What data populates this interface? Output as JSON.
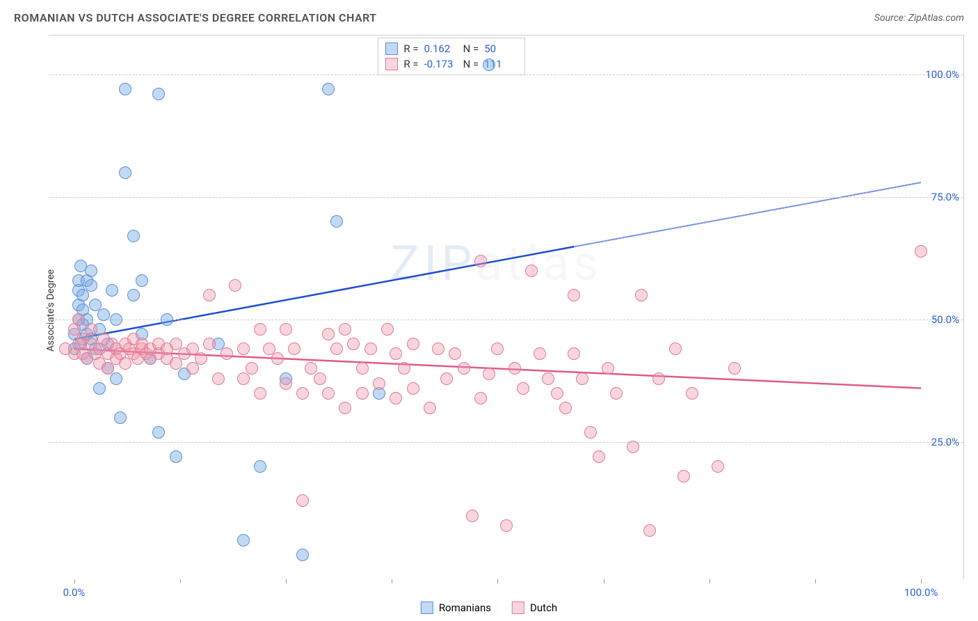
{
  "title": "ROMANIAN VS DUTCH ASSOCIATE'S DEGREE CORRELATION CHART",
  "source": "Source: ZipAtlas.com",
  "ylabel": "Associate's Degree",
  "watermark": {
    "zip": "ZIP",
    "atlas": "atlas",
    "color_zip": "#6b9bd1",
    "color_atlas": "#888888"
  },
  "colors": {
    "title": "#505050",
    "source": "#606060",
    "axis_label": "#2b5fd9",
    "ytick": "#2b5fd9",
    "grid": "#cccccc",
    "series1_fill": "rgba(120,170,230,0.45)",
    "series1_stroke": "#5b8fd6",
    "series1_line": "#1f4fd1",
    "series2_fill": "rgba(240,150,170,0.40)",
    "series2_stroke": "#e07a94",
    "series2_line": "#e05a8a"
  },
  "axes": {
    "xlim": [
      -3,
      105
    ],
    "ylim": [
      -3,
      108
    ],
    "xticks": [
      0,
      12.5,
      25,
      37.5,
      50,
      62.5,
      75,
      87.5,
      100
    ],
    "xtick_labels": {
      "0": "0.0%",
      "100": "100.0%"
    },
    "yticks": [
      25,
      50,
      75,
      100
    ],
    "ytick_labels": {
      "25": "25.0%",
      "50": "50.0%",
      "75": "75.0%",
      "100": "100.0%"
    }
  },
  "stats_box": {
    "rows": [
      {
        "swatch": 0,
        "r_label": "R =",
        "r_val": "0.162",
        "n_label": "N =",
        "n_val": "50"
      },
      {
        "swatch": 1,
        "r_label": "R =",
        "r_val": "-0.173",
        "n_label": "N =",
        "n_val": "111"
      }
    ]
  },
  "legend": {
    "items": [
      {
        "swatch": 0,
        "label": "Romanians"
      },
      {
        "swatch": 1,
        "label": "Dutch"
      }
    ]
  },
  "series": [
    {
      "name": "Romanians",
      "point_radius": 9,
      "trend": {
        "y_at_x0": 46,
        "y_at_x100": 78,
        "solid_until_x": 59
      },
      "points": [
        [
          0,
          44
        ],
        [
          0,
          47
        ],
        [
          0.5,
          50
        ],
        [
          0.5,
          53
        ],
        [
          0.5,
          56
        ],
        [
          0.5,
          58
        ],
        [
          0.8,
          61
        ],
        [
          0.8,
          45
        ],
        [
          1,
          52
        ],
        [
          1,
          49
        ],
        [
          1,
          55
        ],
        [
          1.5,
          58
        ],
        [
          1.5,
          42
        ],
        [
          1.5,
          47
        ],
        [
          1.5,
          50
        ],
        [
          2,
          57
        ],
        [
          2,
          60
        ],
        [
          2,
          46
        ],
        [
          2.5,
          44
        ],
        [
          2.5,
          53
        ],
        [
          3,
          48
        ],
        [
          3,
          36
        ],
        [
          3.5,
          51
        ],
        [
          4,
          45
        ],
        [
          4,
          40
        ],
        [
          4.5,
          56
        ],
        [
          5,
          50
        ],
        [
          5,
          38
        ],
        [
          5.5,
          30
        ],
        [
          6,
          97
        ],
        [
          6,
          80
        ],
        [
          7,
          55
        ],
        [
          7,
          67
        ],
        [
          8,
          58
        ],
        [
          8,
          47
        ],
        [
          9,
          42
        ],
        [
          10,
          96
        ],
        [
          10,
          27
        ],
        [
          11,
          50
        ],
        [
          12,
          22
        ],
        [
          13,
          39
        ],
        [
          17,
          45
        ],
        [
          20,
          5
        ],
        [
          22,
          20
        ],
        [
          25,
          38
        ],
        [
          27,
          2
        ],
        [
          30,
          97
        ],
        [
          31,
          70
        ],
        [
          36,
          35
        ],
        [
          49,
          102
        ]
      ]
    },
    {
      "name": "Dutch",
      "point_radius": 9,
      "trend": {
        "y_at_x0": 44,
        "y_at_x100": 36,
        "solid_until_x": 100
      },
      "points": [
        [
          0,
          43
        ],
        [
          0,
          48
        ],
        [
          0.5,
          45
        ],
        [
          0.5,
          50
        ],
        [
          1,
          43
        ],
        [
          1,
          46
        ],
        [
          1.5,
          42
        ],
        [
          2,
          45
        ],
        [
          2,
          48
        ],
        [
          2.5,
          43
        ],
        [
          3,
          41
        ],
        [
          3,
          44
        ],
        [
          3.5,
          46
        ],
        [
          4,
          43
        ],
        [
          4,
          40
        ],
        [
          4.5,
          45
        ],
        [
          5,
          42
        ],
        [
          5,
          44
        ],
        [
          5.5,
          43
        ],
        [
          6,
          45
        ],
        [
          6,
          41
        ],
        [
          6.5,
          44
        ],
        [
          7,
          43
        ],
        [
          7,
          46
        ],
        [
          7.5,
          42
        ],
        [
          8,
          44
        ],
        [
          8,
          45
        ],
        [
          8.5,
          43
        ],
        [
          9,
          42
        ],
        [
          9,
          44
        ],
        [
          10,
          43
        ],
        [
          10,
          45
        ],
        [
          11,
          42
        ],
        [
          11,
          44
        ],
        [
          12,
          41
        ],
        [
          12,
          45
        ],
        [
          13,
          43
        ],
        [
          14,
          44
        ],
        [
          14,
          40
        ],
        [
          15,
          42
        ],
        [
          16,
          45
        ],
        [
          16,
          55
        ],
        [
          17,
          38
        ],
        [
          18,
          43
        ],
        [
          19,
          57
        ],
        [
          20,
          44
        ],
        [
          20,
          38
        ],
        [
          21,
          40
        ],
        [
          22,
          35
        ],
        [
          22,
          48
        ],
        [
          23,
          44
        ],
        [
          24,
          42
        ],
        [
          25,
          37
        ],
        [
          25,
          48
        ],
        [
          26,
          44
        ],
        [
          27,
          35
        ],
        [
          27,
          13
        ],
        [
          28,
          40
        ],
        [
          29,
          38
        ],
        [
          30,
          47
        ],
        [
          30,
          35
        ],
        [
          31,
          44
        ],
        [
          32,
          32
        ],
        [
          32,
          48
        ],
        [
          33,
          45
        ],
        [
          34,
          40
        ],
        [
          34,
          35
        ],
        [
          35,
          44
        ],
        [
          36,
          37
        ],
        [
          37,
          48
        ],
        [
          38,
          43
        ],
        [
          38,
          34
        ],
        [
          39,
          40
        ],
        [
          40,
          36
        ],
        [
          40,
          45
        ],
        [
          42,
          32
        ],
        [
          43,
          44
        ],
        [
          44,
          38
        ],
        [
          45,
          43
        ],
        [
          46,
          40
        ],
        [
          47,
          10
        ],
        [
          48,
          34
        ],
        [
          48,
          62
        ],
        [
          49,
          39
        ],
        [
          50,
          44
        ],
        [
          51,
          8
        ],
        [
          52,
          40
        ],
        [
          53,
          36
        ],
        [
          54,
          60
        ],
        [
          55,
          43
        ],
        [
          56,
          38
        ],
        [
          57,
          35
        ],
        [
          58,
          32
        ],
        [
          59,
          43
        ],
        [
          59,
          55
        ],
        [
          60,
          38
        ],
        [
          61,
          27
        ],
        [
          62,
          22
        ],
        [
          63,
          40
        ],
        [
          64,
          35
        ],
        [
          66,
          24
        ],
        [
          67,
          55
        ],
        [
          68,
          7
        ],
        [
          69,
          38
        ],
        [
          71,
          44
        ],
        [
          72,
          18
        ],
        [
          73,
          35
        ],
        [
          76,
          20
        ],
        [
          78,
          40
        ],
        [
          100,
          64
        ],
        [
          -1,
          44
        ]
      ]
    }
  ]
}
